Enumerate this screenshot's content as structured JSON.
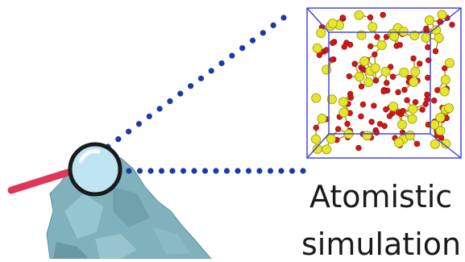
{
  "caption": {
    "line1": "Atomistic",
    "line2": "simulation"
  },
  "icons": {
    "magnifier": "magnifying-glass-icon",
    "rock": "mineral-rock",
    "cell": "atomic-simulation-cell"
  },
  "colors": {
    "dots": "#1a3aa8",
    "cell_edges": "#3a3ae0",
    "atom_yellow": "#e6e62a",
    "atom_red": "#d01818",
    "handle": "#e0365a",
    "lens_rim": "#1a1a1a",
    "lens_fill": "#bfe4f2",
    "rock": "#7fb2bd"
  }
}
